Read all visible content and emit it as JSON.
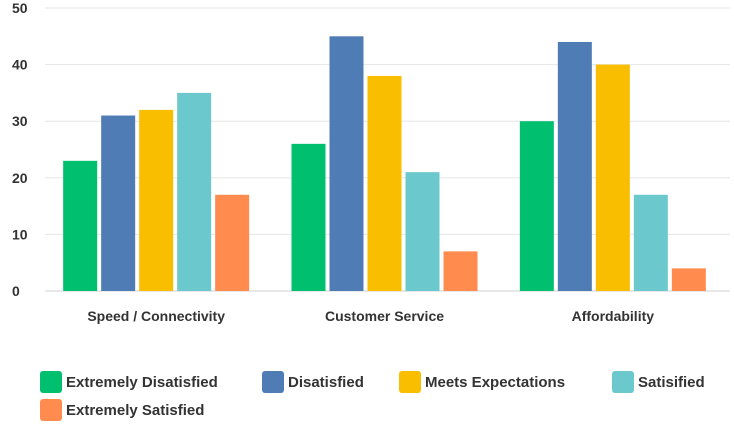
{
  "chart_data": {
    "type": "bar",
    "categories": [
      "Speed / Connectivity",
      "Customer Service",
      "Affordability"
    ],
    "series": [
      {
        "name": "Extremely Disatisfied",
        "color": "#00bf6f",
        "values": [
          23,
          26,
          30
        ]
      },
      {
        "name": "Disatisfied",
        "color": "#507cb6",
        "values": [
          31,
          45,
          44
        ]
      },
      {
        "name": "Meets Expectations",
        "color": "#f9be00",
        "values": [
          32,
          38,
          40
        ]
      },
      {
        "name": "Satisified",
        "color": "#6bc8cd",
        "values": [
          35,
          21,
          17
        ]
      },
      {
        "name": "Extremely Satisfied",
        "color": "#ff8b4f",
        "values": [
          17,
          7,
          4
        ]
      }
    ],
    "ylim": [
      0,
      50
    ],
    "yticks": [
      0,
      10,
      20,
      30,
      40,
      50
    ],
    "grid": true,
    "legend_position": "bottom"
  }
}
